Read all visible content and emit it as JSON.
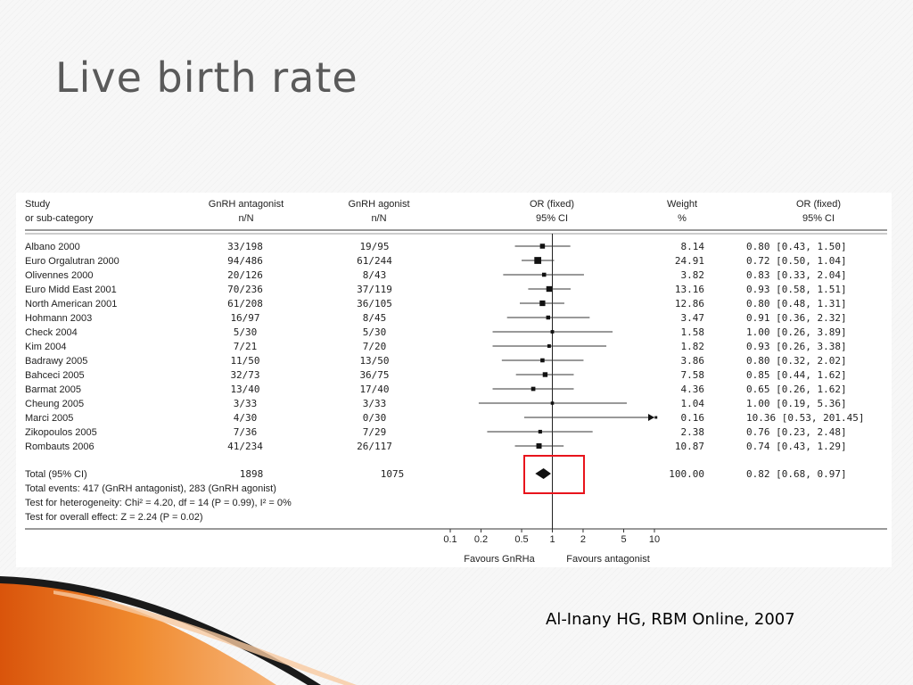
{
  "slide": {
    "title": "Live birth rate",
    "citation": "Al-Inany  HG, RBM Online, 2007"
  },
  "chart_data": {
    "type": "forest",
    "header": {
      "study": "Study",
      "study_sub": "or sub-category",
      "antagonist": "GnRH antagonist",
      "antagonist_sub": "n/N",
      "agonist": "GnRH agonist",
      "agonist_sub": "n/N",
      "plot": "OR (fixed)",
      "plot_sub": "95% CI",
      "weight": "Weight",
      "weight_sub": "%",
      "or": "OR (fixed)",
      "or_sub": "95% CI"
    },
    "studies": [
      {
        "name": "Albano 2000",
        "antagonist": "33/198",
        "agonist": "19/95",
        "weight_text": "8.14",
        "or_text": "0.80 [0.43, 1.50]",
        "or": 0.8,
        "ci": [
          0.43,
          1.5
        ],
        "weight": 8.14
      },
      {
        "name": "Euro Orgalutran 2000",
        "antagonist": "94/486",
        "agonist": "61/244",
        "weight_text": "24.91",
        "or_text": "0.72 [0.50, 1.04]",
        "or": 0.72,
        "ci": [
          0.5,
          1.04
        ],
        "weight": 24.91
      },
      {
        "name": "Olivennes 2000",
        "antagonist": "20/126",
        "agonist": "8/43",
        "weight_text": "3.82",
        "or_text": "0.83 [0.33, 2.04]",
        "or": 0.83,
        "ci": [
          0.33,
          2.04
        ],
        "weight": 3.82
      },
      {
        "name": "Euro Midd East 2001",
        "antagonist": "70/236",
        "agonist": "37/119",
        "weight_text": "13.16",
        "or_text": "0.93 [0.58, 1.51]",
        "or": 0.93,
        "ci": [
          0.58,
          1.51
        ],
        "weight": 13.16
      },
      {
        "name": "North American 2001",
        "antagonist": "61/208",
        "agonist": "36/105",
        "weight_text": "12.86",
        "or_text": "0.80 [0.48, 1.31]",
        "or": 0.8,
        "ci": [
          0.48,
          1.31
        ],
        "weight": 12.86
      },
      {
        "name": "Hohmann 2003",
        "antagonist": "16/97",
        "agonist": "8/45",
        "weight_text": "3.47",
        "or_text": "0.91 [0.36, 2.32]",
        "or": 0.91,
        "ci": [
          0.36,
          2.32
        ],
        "weight": 3.47
      },
      {
        "name": "Check 2004",
        "antagonist": "5/30",
        "agonist": "5/30",
        "weight_text": "1.58",
        "or_text": "1.00 [0.26, 3.89]",
        "or": 1.0,
        "ci": [
          0.26,
          3.89
        ],
        "weight": 1.58
      },
      {
        "name": "Kim 2004",
        "antagonist": "7/21",
        "agonist": "7/20",
        "weight_text": "1.82",
        "or_text": "0.93 [0.26, 3.38]",
        "or": 0.93,
        "ci": [
          0.26,
          3.38
        ],
        "weight": 1.82
      },
      {
        "name": "Badrawy 2005",
        "antagonist": "11/50",
        "agonist": "13/50",
        "weight_text": "3.86",
        "or_text": "0.80 [0.32, 2.02]",
        "or": 0.8,
        "ci": [
          0.32,
          2.02
        ],
        "weight": 3.86
      },
      {
        "name": "Bahceci 2005",
        "antagonist": "32/73",
        "agonist": "36/75",
        "weight_text": "7.58",
        "or_text": "0.85 [0.44, 1.62]",
        "or": 0.85,
        "ci": [
          0.44,
          1.62
        ],
        "weight": 7.58
      },
      {
        "name": "Barmat 2005",
        "antagonist": "13/40",
        "agonist": "17/40",
        "weight_text": "4.36",
        "or_text": "0.65 [0.26, 1.62]",
        "or": 0.65,
        "ci": [
          0.26,
          1.62
        ],
        "weight": 4.36
      },
      {
        "name": "Cheung 2005",
        "antagonist": "3/33",
        "agonist": "3/33",
        "weight_text": "1.04",
        "or_text": "1.00 [0.19, 5.36]",
        "or": 1.0,
        "ci": [
          0.19,
          5.36
        ],
        "weight": 1.04
      },
      {
        "name": "Marci 2005",
        "antagonist": "4/30",
        "agonist": "0/30",
        "weight_text": "0.16",
        "or_text": "10.36 [0.53, 201.45]",
        "or": 10.36,
        "ci": [
          0.53,
          201.45
        ],
        "weight": 0.16
      },
      {
        "name": "Zikopoulos 2005",
        "antagonist": "7/36",
        "agonist": "7/29",
        "weight_text": "2.38",
        "or_text": "0.76 [0.23, 2.48]",
        "or": 0.76,
        "ci": [
          0.23,
          2.48
        ],
        "weight": 2.38
      },
      {
        "name": "Rombauts 2006",
        "antagonist": "41/234",
        "agonist": "26/117",
        "weight_text": "10.87",
        "or_text": "0.74 [0.43, 1.29]",
        "or": 0.74,
        "ci": [
          0.43,
          1.29
        ],
        "weight": 10.87
      }
    ],
    "total": {
      "label": "Total (95% CI)",
      "antagonist": "1898",
      "agonist": "1075",
      "weight_text": "100.00",
      "or_text": "0.82 [0.68, 0.97]",
      "or": 0.82,
      "ci": [
        0.68,
        0.97
      ]
    },
    "footnotes": [
      "Total events: 417 (GnRH antagonist), 283 (GnRH agonist)",
      "Test for heterogeneity: Chi² = 4.20, df = 14 (P = 0.99), I² = 0%",
      "Test for overall effect: Z = 2.24 (P = 0.02)"
    ],
    "x_axis": {
      "scale": "log",
      "ticks": [
        0.1,
        0.2,
        0.5,
        1,
        2,
        5,
        10
      ],
      "tick_labels": [
        "0.1",
        "0.2",
        "0.5",
        "1",
        "2",
        "5",
        "10"
      ],
      "range": [
        0.1,
        10
      ],
      "left_label": "Favours GnRHa",
      "right_label": "Favours antagonist"
    },
    "highlight_color": "#e8141c"
  }
}
